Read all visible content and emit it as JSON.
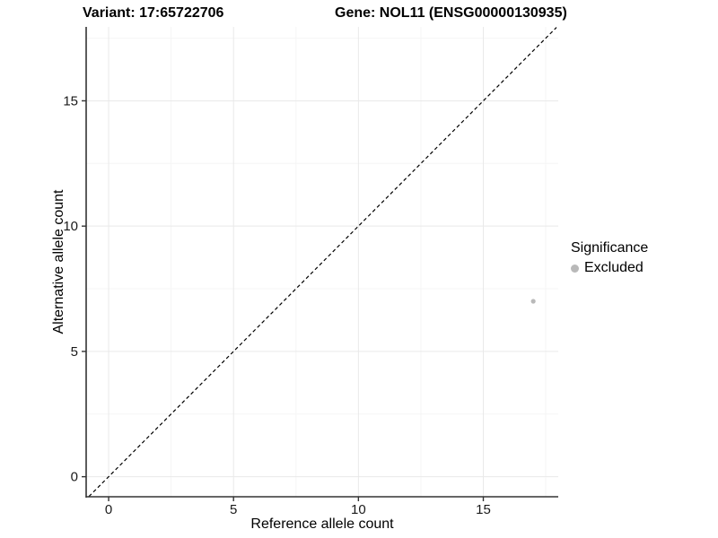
{
  "titles": {
    "variant": "Variant: 17:65722706",
    "gene": "Gene: NOL11 (ENSG00000130935)"
  },
  "chart_data": {
    "type": "scatter",
    "xlabel": "Reference allele count",
    "ylabel": "Alternative allele count",
    "xlim": [
      -0.9,
      18.0
    ],
    "ylim": [
      -0.8,
      17.95
    ],
    "xticks": [
      0,
      5,
      10,
      15
    ],
    "yticks": [
      0,
      5,
      10,
      15
    ],
    "minor_xticks": [
      2.5,
      7.5,
      12.5,
      17.5
    ],
    "minor_yticks": [
      2.5,
      7.5,
      12.5,
      17.5
    ],
    "grid": true,
    "points": [
      {
        "x": 17,
        "y": 7,
        "series": "Excluded"
      }
    ],
    "identity_line": {
      "style": "dashed",
      "from": [
        -0.79,
        -0.79
      ],
      "to": [
        17.93,
        17.93
      ]
    },
    "legend": {
      "title": "Significance",
      "position": "right",
      "items": [
        {
          "label": "Excluded",
          "color": "#b9b9b9"
        }
      ]
    }
  },
  "colors": {
    "background": "#ffffff",
    "point": "#b9b9b9",
    "axis": "#333333",
    "grid_major": "#e9e9e9",
    "grid_minor": "#f5f5f5",
    "line": "#000000",
    "text": "#1a1a1a"
  }
}
